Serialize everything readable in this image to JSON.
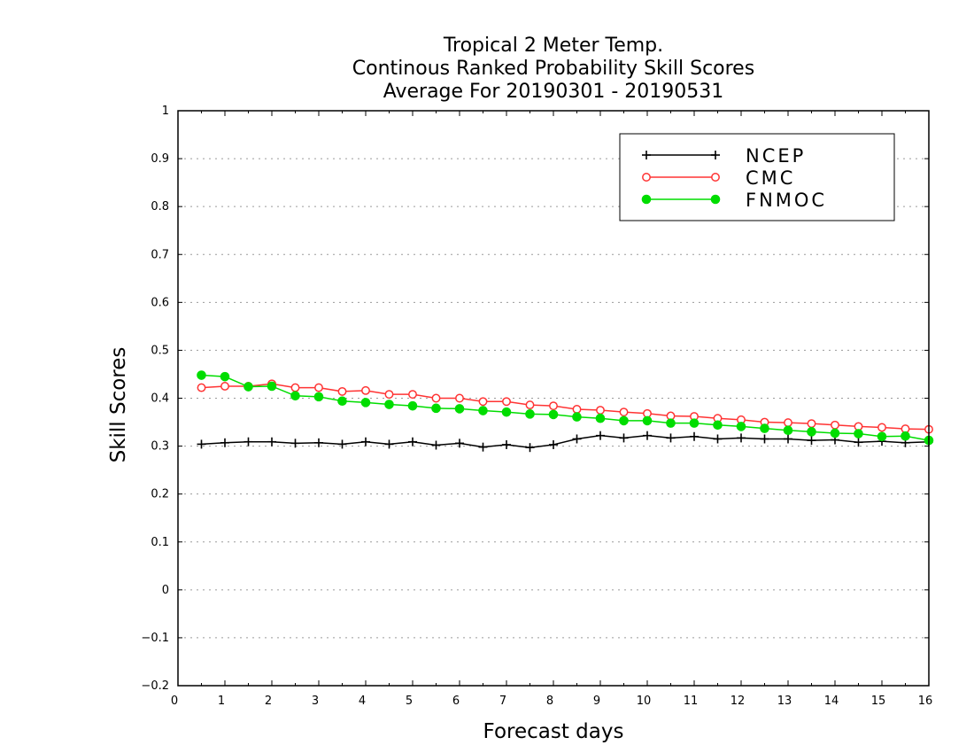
{
  "chart_data": {
    "type": "line",
    "title": [
      "Tropical 2 Meter Temp.",
      "Continous Ranked Probability Skill Scores",
      "Average For 20190301 - 20190531"
    ],
    "xlabel": "Forecast days",
    "ylabel": "Skill Scores",
    "xlim": [
      0,
      16
    ],
    "ylim": [
      -0.2,
      1
    ],
    "xticks": [
      0,
      1,
      2,
      3,
      4,
      5,
      6,
      7,
      8,
      9,
      10,
      11,
      12,
      13,
      14,
      15,
      16
    ],
    "yticks": [
      -0.2,
      -0.1,
      0,
      0.1,
      0.2,
      0.3,
      0.4,
      0.5,
      0.6,
      0.7,
      0.8,
      0.9,
      1
    ],
    "ytick_labels": [
      "−0.2",
      "−0.1",
      "0",
      "0.1",
      "0.2",
      "0.3",
      "0.4",
      "0.5",
      "0.6",
      "0.7",
      "0.8",
      "0.9",
      "1"
    ],
    "grid": "horizontal dotted",
    "legend_position": "top-right",
    "x": [
      0.5,
      1,
      1.5,
      2,
      2.5,
      3,
      3.5,
      4,
      4.5,
      5,
      5.5,
      6,
      6.5,
      7,
      7.5,
      8,
      8.5,
      9,
      9.5,
      10,
      10.5,
      11,
      11.5,
      12,
      12.5,
      13,
      13.5,
      14,
      14.5,
      15,
      15.5,
      16
    ],
    "series": [
      {
        "name": "NCEP",
        "color": "#000000",
        "marker": "plus",
        "values": [
          0.304,
          0.307,
          0.309,
          0.309,
          0.306,
          0.307,
          0.304,
          0.309,
          0.304,
          0.309,
          0.302,
          0.306,
          0.298,
          0.303,
          0.297,
          0.303,
          0.315,
          0.322,
          0.317,
          0.322,
          0.317,
          0.32,
          0.315,
          0.317,
          0.315,
          0.315,
          0.312,
          0.313,
          0.308,
          0.31,
          0.307,
          0.309
        ]
      },
      {
        "name": "CMC",
        "color": "#ff3333",
        "marker": "open-circle",
        "values": [
          0.422,
          0.425,
          0.425,
          0.43,
          0.422,
          0.422,
          0.414,
          0.416,
          0.408,
          0.408,
          0.4,
          0.4,
          0.393,
          0.393,
          0.386,
          0.384,
          0.377,
          0.375,
          0.371,
          0.368,
          0.363,
          0.362,
          0.358,
          0.355,
          0.35,
          0.349,
          0.347,
          0.344,
          0.341,
          0.339,
          0.336,
          0.335
        ]
      },
      {
        "name": "FNMOC",
        "color": "#00dd00",
        "marker": "filled-circle",
        "values": [
          0.448,
          0.445,
          0.424,
          0.425,
          0.405,
          0.403,
          0.394,
          0.391,
          0.387,
          0.384,
          0.379,
          0.378,
          0.374,
          0.371,
          0.367,
          0.366,
          0.361,
          0.358,
          0.353,
          0.353,
          0.348,
          0.348,
          0.344,
          0.341,
          0.337,
          0.333,
          0.33,
          0.327,
          0.326,
          0.32,
          0.321,
          0.312
        ]
      }
    ]
  }
}
